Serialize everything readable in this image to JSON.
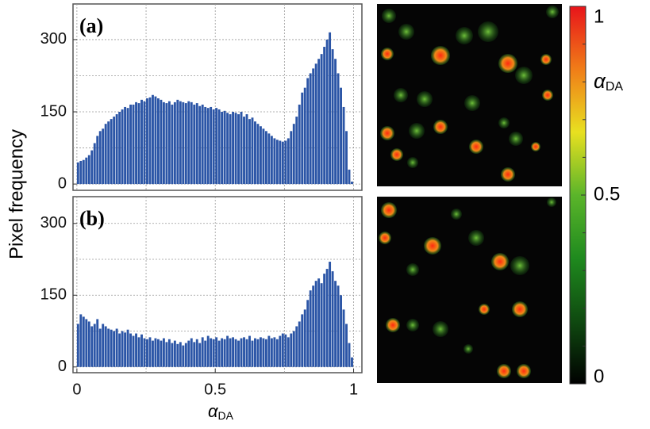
{
  "chart_data": [
    {
      "type": "histogram",
      "panel_label": "(a)",
      "color": "#2b55a6",
      "bins": [
        0,
        0.01,
        0.02,
        0.03,
        0.04,
        0.05,
        0.06,
        0.07,
        0.08,
        0.09,
        0.1,
        0.11,
        0.12,
        0.13,
        0.14,
        0.15,
        0.16,
        0.17,
        0.18,
        0.19,
        0.2,
        0.21,
        0.22,
        0.23,
        0.24,
        0.25,
        0.26,
        0.27,
        0.28,
        0.29,
        0.3,
        0.31,
        0.32,
        0.33,
        0.34,
        0.35,
        0.36,
        0.37,
        0.38,
        0.39,
        0.4,
        0.41,
        0.42,
        0.43,
        0.44,
        0.45,
        0.46,
        0.47,
        0.48,
        0.49,
        0.5,
        0.51,
        0.52,
        0.53,
        0.54,
        0.55,
        0.56,
        0.57,
        0.58,
        0.59,
        0.6,
        0.61,
        0.62,
        0.63,
        0.64,
        0.65,
        0.66,
        0.67,
        0.68,
        0.69,
        0.7,
        0.71,
        0.72,
        0.73,
        0.74,
        0.75,
        0.76,
        0.77,
        0.78,
        0.79,
        0.8,
        0.81,
        0.82,
        0.83,
        0.84,
        0.85,
        0.86,
        0.87,
        0.88,
        0.89,
        0.9,
        0.91,
        0.92,
        0.93,
        0.94,
        0.95,
        0.96,
        0.97,
        0.98,
        0.99,
        1
      ],
      "values": [
        45,
        48,
        50,
        55,
        60,
        70,
        85,
        100,
        110,
        115,
        125,
        130,
        135,
        140,
        145,
        150,
        155,
        160,
        158,
        165,
        165,
        170,
        168,
        175,
        172,
        178,
        180,
        185,
        182,
        178,
        175,
        170,
        168,
        172,
        165,
        170,
        175,
        172,
        170,
        168,
        172,
        170,
        165,
        168,
        162,
        165,
        160,
        158,
        160,
        155,
        158,
        155,
        150,
        152,
        148,
        145,
        150,
        148,
        145,
        150,
        140,
        145,
        135,
        138,
        130,
        125,
        120,
        115,
        110,
        105,
        100,
        95,
        92,
        90,
        88,
        90,
        95,
        110,
        125,
        140,
        165,
        190,
        200,
        220,
        230,
        240,
        250,
        260,
        270,
        285,
        300,
        315,
        280,
        260,
        230,
        200,
        160,
        110,
        30,
        5
      ],
      "xlim": [
        -0.014,
        1.03
      ],
      "ylim": [
        -13,
        374
      ],
      "yticks": [
        0,
        150,
        300
      ],
      "ygrid": [
        0,
        75,
        150,
        225,
        300
      ],
      "xgrid": [
        0,
        0.25,
        0.5,
        0.75,
        1
      ]
    },
    {
      "type": "histogram",
      "panel_label": "(b)",
      "color": "#2b55a6",
      "bins": [
        0,
        0.01,
        0.02,
        0.03,
        0.04,
        0.05,
        0.06,
        0.07,
        0.08,
        0.09,
        0.1,
        0.11,
        0.12,
        0.13,
        0.14,
        0.15,
        0.16,
        0.17,
        0.18,
        0.19,
        0.2,
        0.21,
        0.22,
        0.23,
        0.24,
        0.25,
        0.26,
        0.27,
        0.28,
        0.29,
        0.3,
        0.31,
        0.32,
        0.33,
        0.34,
        0.35,
        0.36,
        0.37,
        0.38,
        0.39,
        0.4,
        0.41,
        0.42,
        0.43,
        0.44,
        0.45,
        0.46,
        0.47,
        0.48,
        0.49,
        0.5,
        0.51,
        0.52,
        0.53,
        0.54,
        0.55,
        0.56,
        0.57,
        0.58,
        0.59,
        0.6,
        0.61,
        0.62,
        0.63,
        0.64,
        0.65,
        0.66,
        0.67,
        0.68,
        0.69,
        0.7,
        0.71,
        0.72,
        0.73,
        0.74,
        0.75,
        0.76,
        0.77,
        0.78,
        0.79,
        0.8,
        0.81,
        0.82,
        0.83,
        0.84,
        0.85,
        0.86,
        0.87,
        0.88,
        0.89,
        0.9,
        0.91,
        0.92,
        0.93,
        0.94,
        0.95,
        0.96,
        0.97,
        0.98,
        0.99,
        1
      ],
      "values": [
        90,
        110,
        105,
        100,
        95,
        85,
        90,
        100,
        80,
        90,
        85,
        80,
        78,
        75,
        80,
        70,
        75,
        72,
        78,
        70,
        65,
        70,
        62,
        68,
        60,
        58,
        62,
        55,
        60,
        58,
        55,
        60,
        52,
        58,
        50,
        55,
        48,
        52,
        45,
        50,
        55,
        60,
        52,
        58,
        50,
        62,
        55,
        65,
        60,
        58,
        62,
        55,
        60,
        58,
        65,
        60,
        62,
        58,
        55,
        60,
        62,
        58,
        65,
        55,
        60,
        58,
        62,
        60,
        58,
        65,
        60,
        62,
        58,
        65,
        70,
        68,
        62,
        70,
        75,
        85,
        95,
        110,
        120,
        140,
        160,
        170,
        180,
        185,
        175,
        195,
        205,
        220,
        200,
        180,
        170,
        150,
        120,
        90,
        50,
        20
      ],
      "xlim": [
        -0.014,
        1.03
      ],
      "ylim": [
        -12,
        356
      ],
      "yticks": [
        0,
        150,
        300
      ],
      "ygrid": [
        0,
        75,
        150,
        225,
        300
      ],
      "xgrid": [
        0,
        0.25,
        0.5,
        0.75,
        1
      ],
      "xticks": [
        0,
        0.5,
        1
      ]
    }
  ],
  "figure": {
    "ylabel": "Pixel frequency",
    "xlabel_symbol": "α",
    "xlabel_sub": "DA"
  },
  "colorbar": {
    "lim": [
      0,
      1
    ],
    "ticks": [
      0,
      0.5,
      1
    ],
    "minor_ticks": [
      0.1,
      0.2,
      0.3,
      0.4,
      0.6,
      0.7,
      0.8,
      0.9
    ],
    "colormap": [
      "#000000",
      "#0f4a10",
      "#1f8a1e",
      "#5bb52a",
      "#e8e020",
      "#f07d18",
      "#e8141a"
    ],
    "label_symbol": "α",
    "label_sub": "DA"
  }
}
